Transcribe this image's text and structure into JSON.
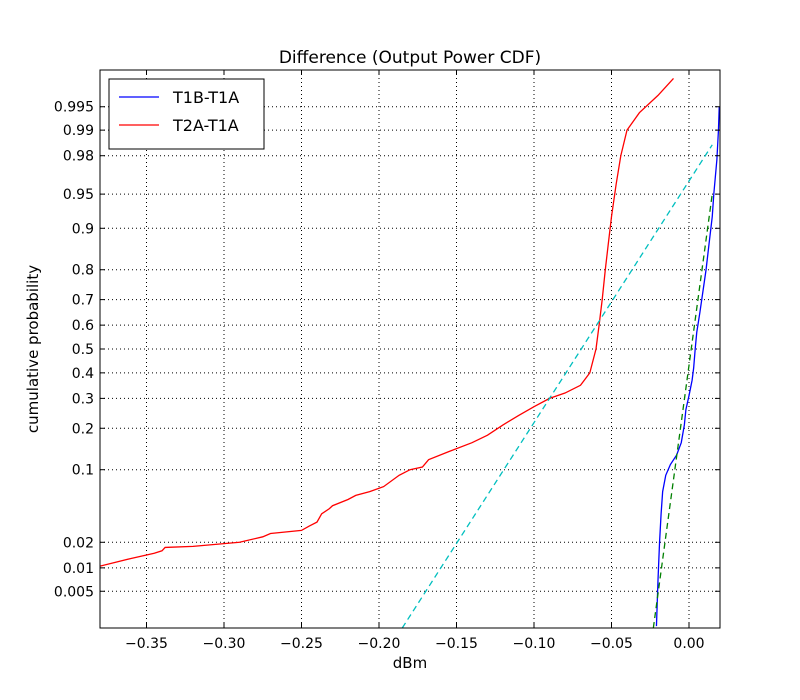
{
  "chart_data": {
    "type": "line",
    "title": "Difference (Output Power CDF)",
    "xlabel": "dBm",
    "ylabel": "cumulative probability",
    "xlim": [
      -0.38,
      0.02
    ],
    "ylim": [
      0.0015,
      0.9985
    ],
    "yscale": "probit",
    "grid": true,
    "legend_position": "top-left",
    "xticks": [
      {
        "value": -0.35,
        "label": "−0.35"
      },
      {
        "value": -0.3,
        "label": "−0.30"
      },
      {
        "value": -0.25,
        "label": "−0.25"
      },
      {
        "value": -0.2,
        "label": "−0.20"
      },
      {
        "value": -0.15,
        "label": "−0.15"
      },
      {
        "value": -0.1,
        "label": "−0.10"
      },
      {
        "value": -0.05,
        "label": "−0.05"
      },
      {
        "value": 0.0,
        "label": "0.00"
      }
    ],
    "yticks": [
      {
        "value": 0.005,
        "label": "0.005"
      },
      {
        "value": 0.01,
        "label": "0.01"
      },
      {
        "value": 0.02,
        "label": "0.02"
      },
      {
        "value": 0.1,
        "label": "0.1"
      },
      {
        "value": 0.2,
        "label": "0.2"
      },
      {
        "value": 0.3,
        "label": "0.3"
      },
      {
        "value": 0.4,
        "label": "0.4"
      },
      {
        "value": 0.5,
        "label": "0.5"
      },
      {
        "value": 0.6,
        "label": "0.6"
      },
      {
        "value": 0.7,
        "label": "0.7"
      },
      {
        "value": 0.8,
        "label": "0.8"
      },
      {
        "value": 0.9,
        "label": "0.9"
      },
      {
        "value": 0.95,
        "label": "0.95"
      },
      {
        "value": 0.98,
        "label": "0.98"
      },
      {
        "value": 0.99,
        "label": "0.99"
      },
      {
        "value": 0.995,
        "label": "0.995"
      }
    ],
    "series": [
      {
        "name": "T1B-T1A",
        "color": "#0000ff",
        "style": "solid",
        "points": [
          [
            -0.021,
            0.0016
          ],
          [
            -0.02,
            0.007
          ],
          [
            -0.019,
            0.02
          ],
          [
            -0.018,
            0.04
          ],
          [
            -0.017,
            0.065
          ],
          [
            -0.015,
            0.09
          ],
          [
            -0.012,
            0.11
          ],
          [
            -0.008,
            0.13
          ],
          [
            -0.005,
            0.16
          ],
          [
            -0.003,
            0.21
          ],
          [
            -0.002,
            0.26
          ],
          [
            0.0,
            0.31
          ],
          [
            0.002,
            0.37
          ],
          [
            0.003,
            0.42
          ],
          [
            0.004,
            0.5
          ],
          [
            0.005,
            0.57
          ],
          [
            0.007,
            0.65
          ],
          [
            0.009,
            0.73
          ],
          [
            0.011,
            0.8
          ],
          [
            0.013,
            0.87
          ],
          [
            0.015,
            0.92
          ],
          [
            0.016,
            0.95
          ],
          [
            0.018,
            0.978
          ],
          [
            0.019,
            0.99
          ],
          [
            0.0195,
            0.995
          ]
        ]
      },
      {
        "name": "T2A-T1A",
        "color": "#ff0000",
        "style": "solid",
        "points": [
          [
            -0.38,
            0.0105
          ],
          [
            -0.36,
            0.013
          ],
          [
            -0.345,
            0.015
          ],
          [
            -0.34,
            0.016
          ],
          [
            -0.338,
            0.0175
          ],
          [
            -0.32,
            0.018
          ],
          [
            -0.29,
            0.02
          ],
          [
            -0.275,
            0.023
          ],
          [
            -0.27,
            0.025
          ],
          [
            -0.25,
            0.027
          ],
          [
            -0.245,
            0.03
          ],
          [
            -0.24,
            0.033
          ],
          [
            -0.237,
            0.04
          ],
          [
            -0.232,
            0.045
          ],
          [
            -0.23,
            0.048
          ],
          [
            -0.22,
            0.055
          ],
          [
            -0.215,
            0.06
          ],
          [
            -0.206,
            0.065
          ],
          [
            -0.197,
            0.072
          ],
          [
            -0.187,
            0.09
          ],
          [
            -0.18,
            0.1
          ],
          [
            -0.172,
            0.105
          ],
          [
            -0.168,
            0.12
          ],
          [
            -0.155,
            0.138
          ],
          [
            -0.14,
            0.16
          ],
          [
            -0.13,
            0.18
          ],
          [
            -0.12,
            0.21
          ],
          [
            -0.11,
            0.24
          ],
          [
            -0.1,
            0.27
          ],
          [
            -0.09,
            0.3
          ],
          [
            -0.08,
            0.32
          ],
          [
            -0.07,
            0.35
          ],
          [
            -0.064,
            0.4
          ],
          [
            -0.06,
            0.5
          ],
          [
            -0.058,
            0.6
          ],
          [
            -0.056,
            0.7
          ],
          [
            -0.054,
            0.8
          ],
          [
            -0.052,
            0.87
          ],
          [
            -0.05,
            0.92
          ],
          [
            -0.047,
            0.96
          ],
          [
            -0.044,
            0.98
          ],
          [
            -0.04,
            0.99
          ],
          [
            -0.032,
            0.994
          ],
          [
            -0.02,
            0.9965
          ],
          [
            -0.01,
            0.998
          ]
        ]
      },
      {
        "name": "",
        "color": "#00bfbf",
        "style": "dashed",
        "points": [
          [
            -0.185,
            0.0015
          ],
          [
            0.015,
            0.985
          ]
        ]
      },
      {
        "name": "",
        "color": "#008000",
        "style": "dashed",
        "points": [
          [
            -0.023,
            0.0015
          ],
          [
            0.015,
            0.95
          ]
        ]
      }
    ]
  }
}
